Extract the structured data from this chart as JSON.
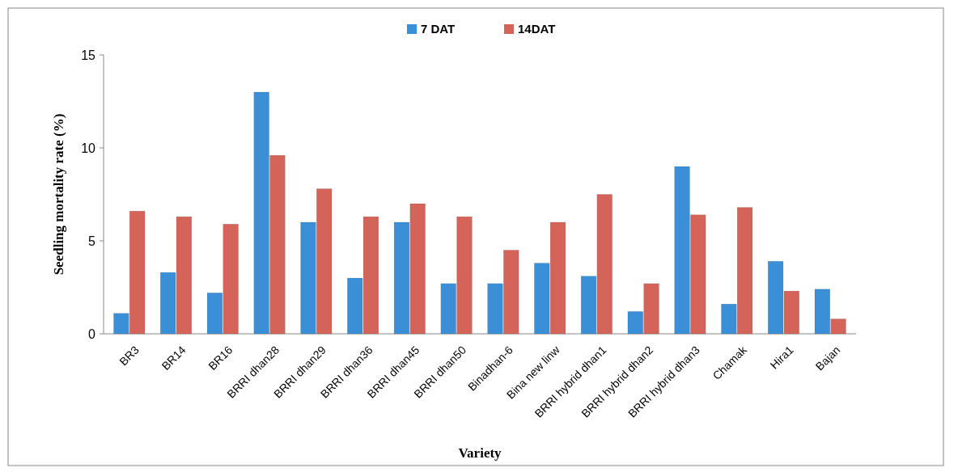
{
  "chart_data": {
    "type": "bar",
    "xlabel": "Variety",
    "ylabel": "Seedling mortality rate (%)",
    "categories": [
      "BR3",
      "BR14",
      "BR16",
      "BRRI dhan28",
      "BRRI dhan29",
      "BRRI dhan36",
      "BRRI dhan45",
      "BRRI dhan50",
      "Binadhan-6",
      "Bina new linw",
      "BRRI hybrid dhan1",
      "BRRI hybrid dhan2",
      "BRRI hybrid dhan3",
      "Chamak",
      "Hira1",
      "Bajan"
    ],
    "series": [
      {
        "name": "7 DAT",
        "color": "#3a8fd6",
        "values": [
          1.1,
          3.3,
          2.2,
          13.0,
          6.0,
          3.0,
          6.0,
          2.7,
          2.7,
          3.8,
          3.1,
          1.2,
          9.0,
          1.6,
          3.9,
          2.4
        ]
      },
      {
        "name": "14DAT",
        "color": "#d4645a",
        "values": [
          6.6,
          6.3,
          5.9,
          9.6,
          7.8,
          6.3,
          7.0,
          6.3,
          4.5,
          6.0,
          7.5,
          2.7,
          6.4,
          6.8,
          2.3,
          0.8
        ]
      }
    ],
    "ylim": [
      0,
      15
    ],
    "yticks": [
      0,
      5,
      10,
      15
    ],
    "grid": false,
    "legend": "top"
  }
}
